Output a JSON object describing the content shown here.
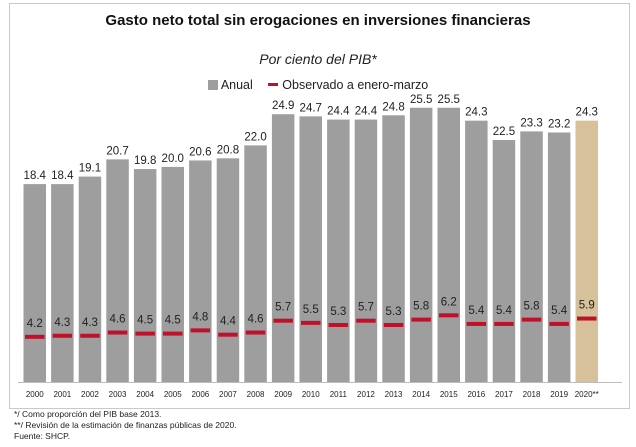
{
  "colors": {
    "bar": "#9e9e9f",
    "bar_highlight": "#d6c19a",
    "marker": "#c0102a"
  },
  "chart_data": {
    "type": "bar",
    "title": "Gasto neto total sin erogaciones en inversiones financieras",
    "subtitle": "Por ciento del PIB*",
    "categories": [
      "2000",
      "2001",
      "2002",
      "2003",
      "2004",
      "2005",
      "2006",
      "2007",
      "2008",
      "2009",
      "2010",
      "2011",
      "2012",
      "2013",
      "2014",
      "2015",
      "2016",
      "2017",
      "2018",
      "2019",
      "2020**"
    ],
    "series": [
      {
        "name": "Anual",
        "type": "bar",
        "values": [
          18.4,
          18.4,
          19.1,
          20.7,
          19.8,
          20.0,
          20.6,
          20.8,
          22.0,
          24.9,
          24.7,
          24.4,
          24.4,
          24.8,
          25.5,
          25.5,
          24.3,
          22.5,
          23.3,
          23.2,
          24.3
        ]
      },
      {
        "name": "Observado a enero-marzo",
        "type": "marker",
        "values": [
          4.2,
          4.3,
          4.3,
          4.6,
          4.5,
          4.5,
          4.8,
          4.4,
          4.6,
          5.7,
          5.5,
          5.3,
          5.7,
          5.3,
          5.8,
          6.2,
          5.4,
          5.4,
          5.8,
          5.4,
          5.9
        ]
      }
    ],
    "highlight_category": "2020**",
    "xlabel": "",
    "ylabel": "",
    "ylim": [
      0,
      26.5
    ],
    "grid": false,
    "legend": "top-center"
  },
  "notes": [
    "*/ Como proporción del PIB base 2013.",
    "**/ Revisión de la estimación de finanzas públicas de 2020.",
    "Fuente: SHCP."
  ]
}
